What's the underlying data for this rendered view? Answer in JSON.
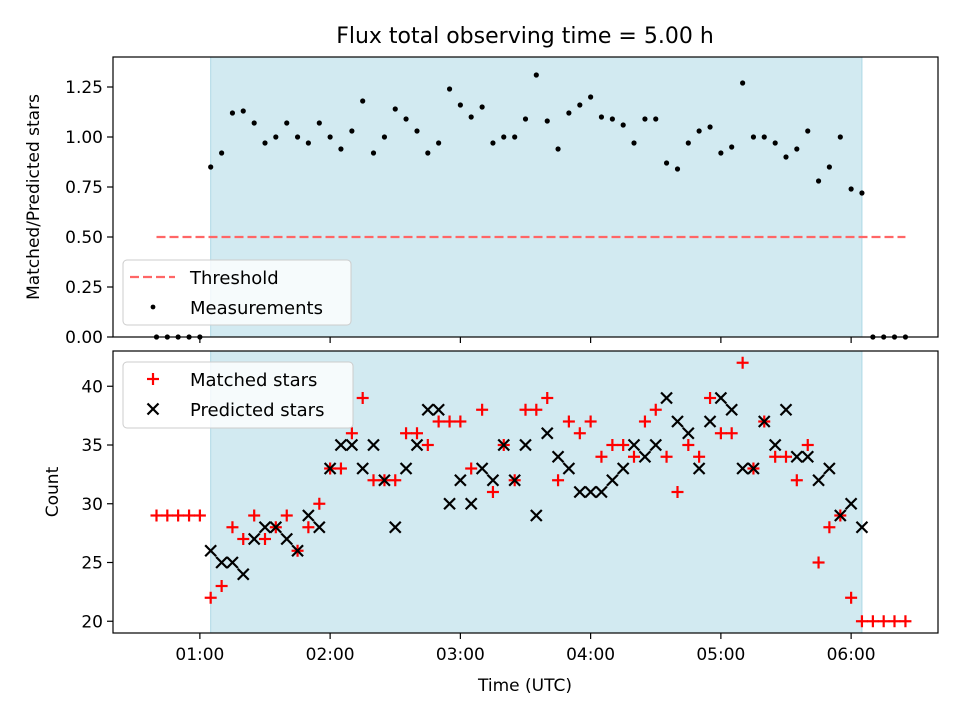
{
  "figure": {
    "title": "Flux total observing time = 5.00 h"
  },
  "colors": {
    "span": "#add8e6",
    "threshold": "#ff6666",
    "matched": "#ff0000",
    "predicted": "#000000",
    "measure": "#000000"
  },
  "chart_data": [
    {
      "type": "scatter",
      "title": "Flux total observing time = 5.00 h",
      "ylabel": "Matched/Predicted stars",
      "xlabel": "",
      "xlim": [
        0.333,
        6.667
      ],
      "ylim": [
        0,
        1.4
      ],
      "yticks": [
        0,
        0.25,
        0.5,
        0.75,
        1.0,
        1.25
      ],
      "ytick_labels": [
        "0.00",
        "0.25",
        "0.50",
        "0.75",
        "1.00",
        "1.25"
      ],
      "xticks": [
        1,
        2,
        3,
        4,
        5,
        6
      ],
      "xtick_labels": [
        "",
        "",
        "",
        "",
        "",
        ""
      ],
      "shaded_span": [
        1.083,
        6.083
      ],
      "threshold": {
        "name": "Threshold",
        "y": 0.5,
        "x": [
          0.667,
          6.417
        ],
        "style": "dashed"
      },
      "series": [
        {
          "name": "Measurements",
          "marker": "dot",
          "x": [
            0.667,
            0.75,
            0.833,
            0.917,
            1.0,
            1.083,
            1.167,
            1.25,
            1.333,
            1.417,
            1.5,
            1.583,
            1.667,
            1.75,
            1.833,
            1.917,
            2.0,
            2.083,
            2.167,
            2.25,
            2.333,
            2.417,
            2.5,
            2.583,
            2.667,
            2.75,
            2.833,
            2.917,
            3.0,
            3.083,
            3.167,
            3.25,
            3.333,
            3.417,
            3.5,
            3.583,
            3.667,
            3.75,
            3.833,
            3.917,
            4.0,
            4.083,
            4.167,
            4.25,
            4.333,
            4.417,
            4.5,
            4.583,
            4.667,
            4.75,
            4.833,
            4.917,
            5.0,
            5.083,
            5.167,
            5.25,
            5.333,
            5.417,
            5.5,
            5.583,
            5.667,
            5.75,
            5.833,
            5.917,
            6.0,
            6.083,
            6.167,
            6.25,
            6.333,
            6.417
          ],
          "y": [
            0,
            0,
            0,
            0,
            0,
            0.85,
            0.92,
            1.12,
            1.13,
            1.07,
            0.97,
            1.0,
            1.07,
            1.0,
            0.97,
            1.07,
            1.0,
            0.94,
            1.03,
            1.18,
            0.92,
            1.0,
            1.14,
            1.09,
            1.03,
            0.92,
            0.97,
            1.24,
            1.16,
            1.1,
            1.15,
            0.97,
            1.0,
            1.0,
            1.09,
            1.31,
            1.08,
            0.94,
            1.12,
            1.16,
            1.2,
            1.1,
            1.09,
            1.06,
            0.97,
            1.09,
            1.09,
            0.87,
            0.84,
            0.97,
            1.03,
            1.05,
            0.92,
            0.95,
            1.27,
            1.0,
            1.0,
            0.97,
            0.9,
            0.94,
            1.03,
            0.78,
            0.85,
            1.0,
            0.74,
            0.72,
            0,
            0,
            0,
            0
          ]
        }
      ],
      "legend": {
        "placement": "lower-left",
        "entries": [
          "Threshold",
          "Measurements"
        ]
      }
    },
    {
      "type": "scatter",
      "title": "",
      "ylabel": "Count",
      "xlabel": "Time (UTC)",
      "xlim": [
        0.333,
        6.667
      ],
      "ylim": [
        19,
        43
      ],
      "yticks": [
        20,
        25,
        30,
        35,
        40
      ],
      "ytick_labels": [
        "20",
        "25",
        "30",
        "35",
        "40"
      ],
      "xticks": [
        1,
        2,
        3,
        4,
        5,
        6
      ],
      "xtick_labels": [
        "01:00",
        "02:00",
        "03:00",
        "04:00",
        "05:00",
        "06:00"
      ],
      "shaded_span": [
        1.083,
        6.083
      ],
      "series": [
        {
          "name": "Matched stars",
          "marker": "plus",
          "x": [
            0.667,
            0.75,
            0.833,
            0.917,
            1.0,
            1.083,
            1.167,
            1.25,
            1.333,
            1.417,
            1.5,
            1.583,
            1.667,
            1.75,
            1.833,
            1.917,
            2.0,
            2.083,
            2.167,
            2.25,
            2.333,
            2.417,
            2.5,
            2.583,
            2.667,
            2.75,
            2.833,
            2.917,
            3.0,
            3.083,
            3.167,
            3.25,
            3.333,
            3.417,
            3.5,
            3.583,
            3.667,
            3.75,
            3.833,
            3.917,
            4.0,
            4.083,
            4.167,
            4.25,
            4.333,
            4.417,
            4.5,
            4.583,
            4.667,
            4.75,
            4.833,
            4.917,
            5.0,
            5.083,
            5.167,
            5.25,
            5.333,
            5.417,
            5.5,
            5.583,
            5.667,
            5.75,
            5.833,
            5.917,
            6.0,
            6.083,
            6.167,
            6.25,
            6.333,
            6.417
          ],
          "y": [
            29,
            29,
            29,
            29,
            29,
            22,
            23,
            28,
            27,
            29,
            27,
            28,
            29,
            26,
            28,
            30,
            33,
            33,
            36,
            39,
            32,
            32,
            32,
            36,
            36,
            35,
            37,
            37,
            37,
            33,
            38,
            31,
            35,
            32,
            38,
            38,
            39,
            32,
            37,
            36,
            37,
            34,
            35,
            35,
            34,
            37,
            38,
            34,
            31,
            35,
            34,
            39,
            36,
            36,
            42,
            33,
            37,
            34,
            34,
            32,
            35,
            25,
            28,
            29,
            22,
            20,
            20,
            20,
            20,
            20
          ]
        },
        {
          "name": "Predicted stars",
          "marker": "x",
          "x": [
            1.083,
            1.167,
            1.25,
            1.333,
            1.417,
            1.5,
            1.583,
            1.667,
            1.75,
            1.833,
            1.917,
            2.0,
            2.083,
            2.167,
            2.25,
            2.333,
            2.417,
            2.5,
            2.583,
            2.667,
            2.75,
            2.833,
            2.917,
            3.0,
            3.083,
            3.167,
            3.25,
            3.333,
            3.417,
            3.5,
            3.583,
            3.667,
            3.75,
            3.833,
            3.917,
            4.0,
            4.083,
            4.167,
            4.25,
            4.333,
            4.417,
            4.5,
            4.583,
            4.667,
            4.75,
            4.833,
            4.917,
            5.0,
            5.083,
            5.167,
            5.25,
            5.333,
            5.417,
            5.5,
            5.583,
            5.667,
            5.75,
            5.833,
            5.917,
            6.0,
            6.083
          ],
          "y": [
            26,
            25,
            25,
            24,
            27,
            28,
            28,
            27,
            26,
            29,
            28,
            33,
            35,
            35,
            33,
            35,
            32,
            28,
            33,
            35,
            38,
            38,
            30,
            32,
            30,
            33,
            32,
            35,
            32,
            35,
            29,
            36,
            34,
            33,
            31,
            31,
            31,
            32,
            33,
            35,
            34,
            35,
            39,
            37,
            36,
            33,
            37,
            39,
            38,
            33,
            33,
            37,
            35,
            38,
            34,
            34,
            32,
            33,
            29,
            30,
            28
          ]
        }
      ],
      "legend": {
        "placement": "upper-left",
        "entries": [
          "Matched stars",
          "Predicted stars"
        ]
      }
    }
  ]
}
